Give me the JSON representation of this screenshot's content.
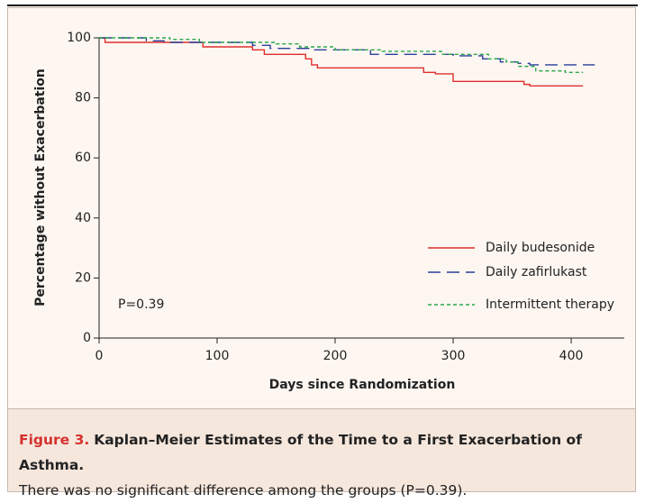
{
  "chart_data": {
    "type": "step",
    "y_label": "Percentage without Exacerbation",
    "x_label": "Days since Randomization",
    "annotation": "P=0.39",
    "xlim": [
      0,
      445
    ],
    "xticks": [
      0,
      100,
      200,
      300,
      400
    ],
    "ylim": [
      0,
      100
    ],
    "yticks": [
      0,
      20,
      40,
      60,
      80,
      100
    ],
    "legend": "lower right",
    "series": [
      {
        "name": "Daily budesonide",
        "color": "#e0302e",
        "x": [
          0,
          5,
          88,
          130,
          140,
          175,
          180,
          185,
          275,
          285,
          300,
          360,
          365,
          410
        ],
        "values": [
          100,
          98.5,
          97,
          96,
          94.5,
          93,
          91,
          90,
          88.5,
          88,
          85.5,
          84.5,
          84,
          84
        ]
      },
      {
        "name": "Daily zafirlukast",
        "color": "#2b3f9c",
        "x": [
          0,
          40,
          55,
          130,
          145,
          180,
          230,
          300,
          325,
          340,
          355,
          365,
          420
        ],
        "values": [
          100,
          99,
          98.5,
          97.5,
          96.5,
          96,
          94.5,
          94,
          93,
          92,
          91.5,
          91,
          91
        ]
      },
      {
        "name": "Intermittent therapy",
        "color": "#2aa84a",
        "x": [
          0,
          60,
          85,
          150,
          170,
          200,
          240,
          290,
          330,
          345,
          355,
          370,
          395,
          410
        ],
        "values": [
          100,
          99.5,
          98.5,
          98,
          97,
          96,
          95.5,
          94.5,
          93,
          92,
          90.5,
          89,
          88.5,
          88.5
        ]
      }
    ]
  },
  "caption": {
    "figure": "Figure 3.",
    "title": "Kaplan–Meier Estimates of the Time to a First Exacerbation of Asthma.",
    "text": "There was no significant difference among the groups (P=0.39)."
  }
}
